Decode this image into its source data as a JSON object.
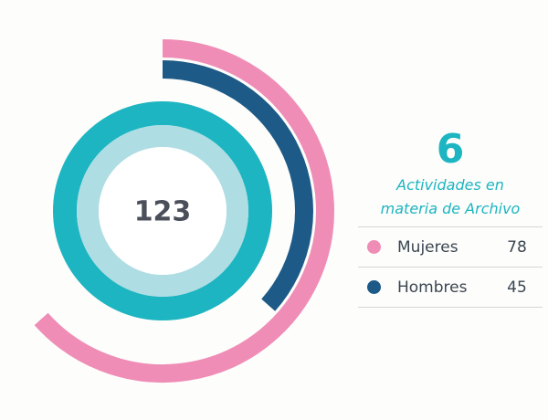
{
  "chart_data": {
    "type": "radial-bar",
    "total": 123,
    "count": 6,
    "label": "Actividades en materia de Archivo",
    "categories": [
      "Mujeres",
      "Hombres"
    ],
    "values": [
      78,
      45
    ],
    "colors": [
      "#ef8db6",
      "#1d5a87"
    ]
  }
}
